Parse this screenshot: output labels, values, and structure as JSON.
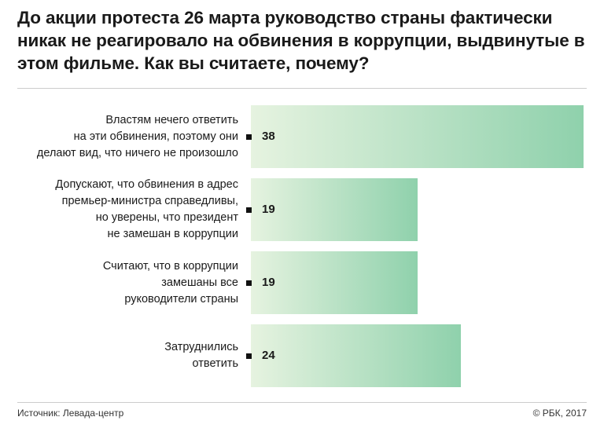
{
  "title": "До акции протеста 26 марта руководство страны фактически никак не реагировало на обвинения в коррупции, выдвинутые в этом фильме. Как вы считаете, почему?",
  "footer": {
    "source": "Источник: Левада-центр",
    "copyright": "© РБК, 2017"
  },
  "colors": {
    "bar_start": "#e6f3e0",
    "bar_end": "#8fd1ac",
    "marker": "#111111"
  },
  "chart_data": {
    "type": "bar",
    "orientation": "horizontal",
    "categories": [
      "Властям нечего ответить на эти обвинения, поэтому они делают вид, что ничего не произошло",
      "Допускают, что обвинения в адрес премьер-министра справедливы, но уверены, что президент не замешан в коррупции",
      "Считают, что в коррупции замешаны все руководители страны",
      "Затруднились ответить"
    ],
    "category_lines": [
      [
        "Властям нечего ответить",
        "на эти обвинения, поэтому они",
        "делают вид, что ничего не произошло"
      ],
      [
        "Допускают, что обвинения в адрес",
        "премьер-министра справедливы,",
        "но уверены, что президент",
        "не замешан в коррупции"
      ],
      [
        "Считают, что в коррупции",
        "замешаны все",
        "руководители страны"
      ],
      [
        "Затруднились",
        "ответить"
      ]
    ],
    "values": [
      38,
      19,
      19,
      24
    ],
    "value_labels": [
      "38",
      "19",
      "19",
      "24"
    ],
    "xlim": [
      0,
      38
    ],
    "grid": false,
    "legend": "none"
  }
}
